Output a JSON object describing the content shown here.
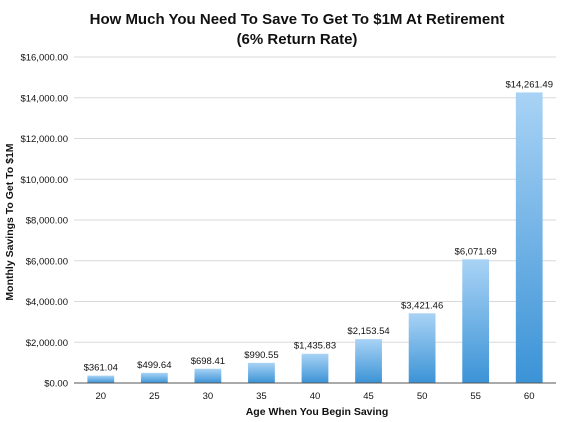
{
  "chart_data": {
    "type": "bar",
    "title": "How Much You Need To Save To Get To $1M At Retirement",
    "subtitle": "(6% Return Rate)",
    "xlabel": "Age When You Begin Saving",
    "ylabel": "Monthly Savings To Get To $1M",
    "categories": [
      "20",
      "25",
      "30",
      "35",
      "40",
      "45",
      "50",
      "55",
      "60"
    ],
    "values": [
      361.04,
      499.64,
      698.41,
      990.55,
      1435.83,
      2153.54,
      3421.46,
      6071.69,
      14261.49
    ],
    "value_labels": [
      "$361.04",
      "$499.64",
      "$698.41",
      "$990.55",
      "$1,435.83",
      "$2,153.54",
      "$3,421.46",
      "$6,071.69",
      "$14,261.49"
    ],
    "ylim": [
      0,
      16000
    ],
    "yticks": [
      0,
      2000,
      4000,
      6000,
      8000,
      10000,
      12000,
      14000,
      16000
    ],
    "ytick_labels": [
      "$0.00",
      "$2,000.00",
      "$4,000.00",
      "$6,000.00",
      "$8,000.00",
      "$10,000.00",
      "$12,000.00",
      "$14,000.00",
      "$16,000.00"
    ],
    "grid": true,
    "legend": "none",
    "colors": {
      "bar_top": "#a9d3f5",
      "bar_bottom": "#3b93d6",
      "grid": "#d9d9d9",
      "axis": "#555555"
    }
  }
}
